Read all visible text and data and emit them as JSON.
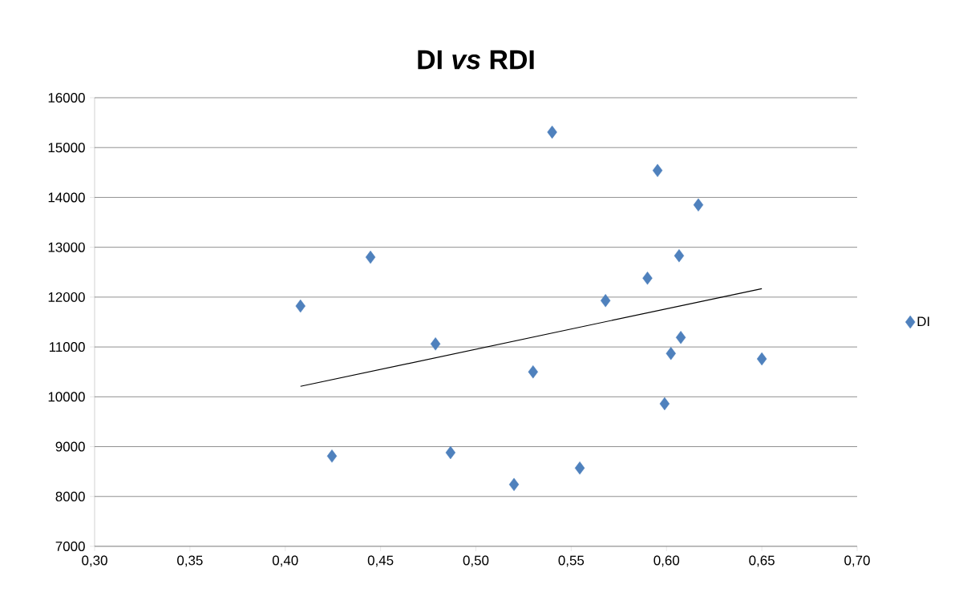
{
  "chart_data": {
    "type": "scatter",
    "title": "DI *vs* RDI",
    "xlim": [
      0.3,
      0.7
    ],
    "xticks": [
      {
        "value": 0.3,
        "label": "0,30"
      },
      {
        "value": 0.35,
        "label": "0,35"
      },
      {
        "value": 0.4,
        "label": "0,40"
      },
      {
        "value": 0.45,
        "label": "0,45"
      },
      {
        "value": 0.5,
        "label": "0,50"
      },
      {
        "value": 0.55,
        "label": "0,55"
      },
      {
        "value": 0.6,
        "label": "0,60"
      },
      {
        "value": 0.65,
        "label": "0,65"
      },
      {
        "value": 0.7,
        "label": "0,70"
      }
    ],
    "ylim": [
      7000,
      16000
    ],
    "yticks": [
      7000,
      8000,
      9000,
      10000,
      11000,
      12000,
      13000,
      14000,
      15000,
      16000
    ],
    "grid": "y",
    "legend": "right",
    "series": [
      {
        "name": "DI",
        "color": "#4f81bd",
        "marker": "diamond",
        "x": [
          0.408,
          0.4245,
          0.4447,
          0.4788,
          0.4867,
          0.52,
          0.53,
          0.54,
          0.5545,
          0.568,
          0.59,
          0.5953,
          0.599,
          0.6023,
          0.6066,
          0.6075,
          0.6167,
          0.65
        ],
        "values": [
          11820,
          8810,
          12800,
          11060,
          8880,
          8240,
          10500,
          15310,
          8570,
          11930,
          12380,
          14540,
          9860,
          10870,
          12830,
          11190,
          13850,
          10760
        ]
      },
      {
        "type": "line",
        "color": "#000000",
        "marker": "none",
        "x": [
          0.408,
          0.65
        ],
        "values": [
          10210,
          12170
        ]
      }
    ]
  }
}
